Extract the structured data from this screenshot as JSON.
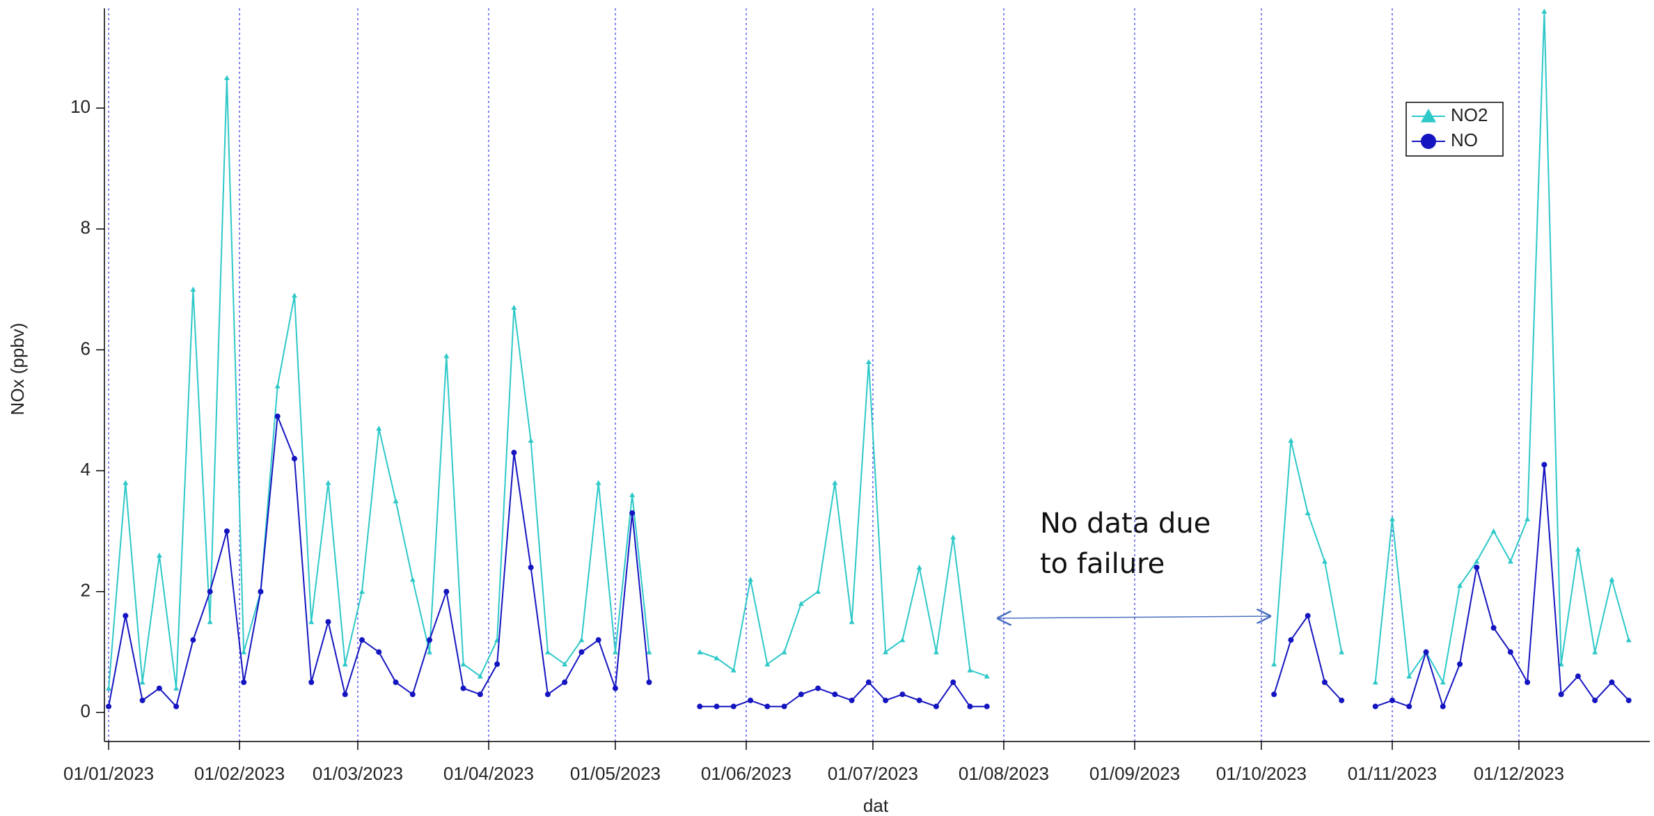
{
  "chart_data": {
    "type": "line",
    "xlabel": "dat",
    "ylabel": "NOx (ppbv)",
    "annotation": [
      "No data due",
      "to failure"
    ],
    "x": [
      "01/01/2023",
      "05/01/2023",
      "09/01/2023",
      "13/01/2023",
      "17/01/2023",
      "21/01/2023",
      "25/01/2023",
      "29/01/2023",
      "02/02/2023",
      "06/02/2023",
      "10/02/2023",
      "14/02/2023",
      "18/02/2023",
      "22/02/2023",
      "26/02/2023",
      "02/03/2023",
      "06/03/2023",
      "10/03/2023",
      "14/03/2023",
      "18/03/2023",
      "22/03/2023",
      "26/03/2023",
      "30/03/2023",
      "03/04/2023",
      "07/04/2023",
      "11/04/2023",
      "15/04/2023",
      "19/04/2023",
      "23/04/2023",
      "27/04/2023",
      "01/05/2023",
      "05/05/2023",
      "09/05/2023",
      "13/05/2023",
      "17/05/2023",
      "21/05/2023",
      "25/05/2023",
      "29/05/2023",
      "02/06/2023",
      "06/06/2023",
      "10/06/2023",
      "14/06/2023",
      "18/06/2023",
      "22/06/2023",
      "26/06/2023",
      "30/06/2023",
      "04/07/2023",
      "08/07/2023",
      "12/07/2023",
      "16/07/2023",
      "20/07/2023",
      "24/07/2023",
      "28/07/2023",
      "01/08/2023",
      "05/08/2023",
      "09/08/2023",
      "13/08/2023",
      "17/08/2023",
      "21/08/2023",
      "25/08/2023",
      "29/08/2023",
      "02/09/2023",
      "06/09/2023",
      "10/09/2023",
      "14/09/2023",
      "18/09/2023",
      "22/09/2023",
      "26/09/2023",
      "30/09/2023",
      "04/10/2023",
      "08/10/2023",
      "12/10/2023",
      "16/10/2023",
      "20/10/2023",
      "24/10/2023",
      "28/10/2023",
      "01/11/2023",
      "05/11/2023",
      "09/11/2023",
      "13/11/2023",
      "17/11/2023",
      "21/11/2023",
      "25/11/2023",
      "29/11/2023",
      "03/12/2023",
      "07/12/2023",
      "11/12/2023",
      "15/12/2023",
      "19/12/2023",
      "23/12/2023",
      "27/12/2023"
    ],
    "series": [
      {
        "name": "NO2",
        "color": "#2ec8c8",
        "marker": "triangle",
        "values": [
          0.4,
          3.8,
          0.5,
          2.6,
          0.4,
          7.0,
          1.5,
          10.5,
          1.0,
          2.0,
          5.4,
          6.9,
          1.5,
          3.8,
          0.8,
          2.0,
          4.7,
          3.5,
          2.2,
          1.0,
          5.9,
          0.8,
          0.6,
          1.2,
          6.7,
          4.5,
          1.0,
          0.8,
          1.2,
          3.8,
          1.0,
          3.6,
          1.0,
          null,
          null,
          1.0,
          0.9,
          0.7,
          2.2,
          0.8,
          1.0,
          1.8,
          2.0,
          3.8,
          1.5,
          5.8,
          1.0,
          1.2,
          2.4,
          1.0,
          2.9,
          0.7,
          0.6,
          null,
          null,
          null,
          null,
          null,
          null,
          null,
          null,
          null,
          null,
          null,
          null,
          null,
          null,
          null,
          null,
          0.8,
          4.5,
          3.3,
          2.5,
          1.0,
          null,
          0.5,
          3.2,
          0.6,
          1.0,
          0.5,
          2.1,
          2.5,
          3.0,
          2.5,
          3.2,
          11.6,
          0.8,
          2.7,
          1.0,
          2.2,
          1.2
        ]
      },
      {
        "name": "NO",
        "color": "#1414c0",
        "marker": "circle",
        "values": [
          0.1,
          1.6,
          0.2,
          0.4,
          0.1,
          1.2,
          2.0,
          3.0,
          0.5,
          2.0,
          4.9,
          4.2,
          0.5,
          1.5,
          0.3,
          1.2,
          1.0,
          0.5,
          0.3,
          1.2,
          2.0,
          0.4,
          0.3,
          0.8,
          4.3,
          2.4,
          0.3,
          0.5,
          1.0,
          1.2,
          0.4,
          3.3,
          0.5,
          null,
          null,
          0.1,
          0.1,
          0.1,
          0.2,
          0.1,
          0.1,
          0.3,
          0.4,
          0.3,
          0.2,
          0.5,
          0.2,
          0.3,
          0.2,
          0.1,
          0.5,
          0.1,
          0.1,
          null,
          null,
          null,
          null,
          null,
          null,
          null,
          null,
          null,
          null,
          null,
          null,
          null,
          null,
          null,
          null,
          0.3,
          1.2,
          1.6,
          0.5,
          0.2,
          null,
          0.1,
          0.2,
          0.1,
          1.0,
          0.1,
          0.8,
          2.4,
          1.4,
          1.0,
          0.5,
          4.1,
          0.3,
          0.6,
          0.2,
          0.5,
          0.2
        ]
      }
    ],
    "xlim": [
      "31/12/2022",
      "01/01/2024"
    ],
    "xticks": [
      "01/01/2023",
      "01/02/2023",
      "01/03/2023",
      "01/04/2023",
      "01/05/2023",
      "01/06/2023",
      "01/07/2023",
      "01/08/2023",
      "01/09/2023",
      "01/10/2023",
      "01/11/2023",
      "01/12/2023"
    ],
    "ylim": [
      -0.48,
      11.65
    ],
    "yticks": [
      0,
      2,
      4,
      6,
      8,
      10
    ],
    "xgrid": true,
    "ygrid": false,
    "legend": "upper right"
  }
}
